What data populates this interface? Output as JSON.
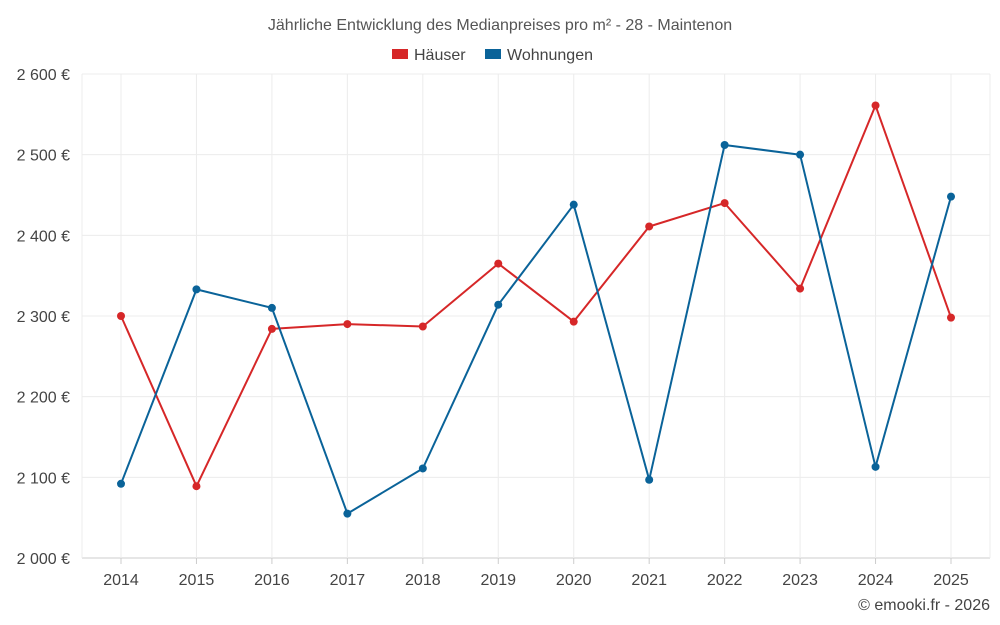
{
  "chart_data": {
    "type": "line",
    "title": "Jährliche Entwicklung des Medianpreises pro m² - 28 - Maintenon",
    "categories": [
      "2014",
      "2015",
      "2016",
      "2017",
      "2018",
      "2019",
      "2020",
      "2021",
      "2022",
      "2023",
      "2024",
      "2025"
    ],
    "series": [
      {
        "name": "Häuser",
        "color": "#d62728",
        "values": [
          2300,
          2089,
          2284,
          2290,
          2287,
          2365,
          2293,
          2411,
          2440,
          2334,
          2561,
          2298
        ]
      },
      {
        "name": "Wohnungen",
        "color": "#0a6399",
        "values": [
          2092,
          2333,
          2310,
          2055,
          2111,
          2314,
          2438,
          2097,
          2512,
          2500,
          2113,
          2448
        ]
      }
    ],
    "y_ticks": [
      2000,
      2100,
      2200,
      2300,
      2400,
      2500,
      2600
    ],
    "y_tick_labels": [
      "2 000 €",
      "2 100 €",
      "2 200 €",
      "2 300 €",
      "2 400 €",
      "2 500 €",
      "2 600 €"
    ],
    "ylim": [
      2000,
      2600
    ],
    "grid": true,
    "legend_position": "top-center",
    "xlabel": "",
    "ylabel": ""
  },
  "credit": "© emooki.fr - 2026"
}
